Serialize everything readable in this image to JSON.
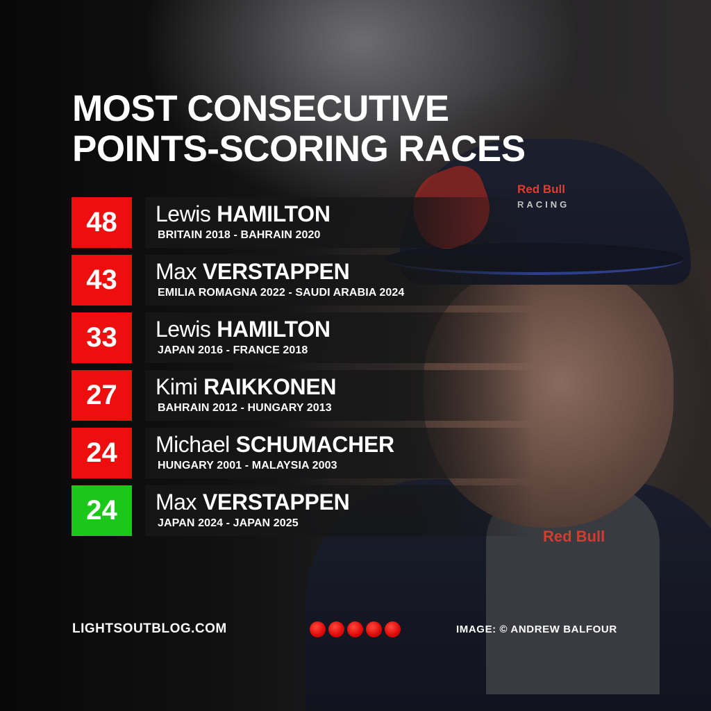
{
  "title": {
    "line1": "MOST CONSECUTIVE",
    "line2": "POINTS-SCORING RACES"
  },
  "rankings": [
    {
      "count": "48",
      "first_name": "Lewis",
      "last_name": "HAMILTON",
      "span": "BRITAIN 2018 - BAHRAIN 2020",
      "status": "finished",
      "color": "#ee0e0e"
    },
    {
      "count": "43",
      "first_name": "Max",
      "last_name": "VERSTAPPEN",
      "span": "EMILIA ROMAGNA 2022 - SAUDI ARABIA 2024",
      "status": "finished",
      "color": "#ee0e0e"
    },
    {
      "count": "33",
      "first_name": "Lewis",
      "last_name": "HAMILTON",
      "span": "JAPAN 2016 - FRANCE 2018",
      "status": "finished",
      "color": "#ee0e0e"
    },
    {
      "count": "27",
      "first_name": "Kimi",
      "last_name": "RAIKKONEN",
      "span": "BAHRAIN 2012 - HUNGARY 2013",
      "status": "finished",
      "color": "#ee0e0e"
    },
    {
      "count": "24",
      "first_name": "Michael",
      "last_name": "SCHUMACHER",
      "span": "HUNGARY 2001 - MALAYSIA 2003",
      "status": "finished",
      "color": "#ee0e0e"
    },
    {
      "count": "24",
      "first_name": "Max",
      "last_name": "VERSTAPPEN",
      "span": "JAPAN 2024 - JAPAN 2025",
      "status": "current",
      "color": "#1cc71c"
    }
  ],
  "photo": {
    "cap_logo": "Red Bull",
    "cap_sub": "RACING",
    "chest_logo": "Red Bull"
  },
  "footer": {
    "site": "LIGHTSOUTBLOG.COM",
    "credit": "IMAGE: © ANDREW BALFOUR",
    "light_count": 5,
    "light_color": "#e10c0c"
  }
}
